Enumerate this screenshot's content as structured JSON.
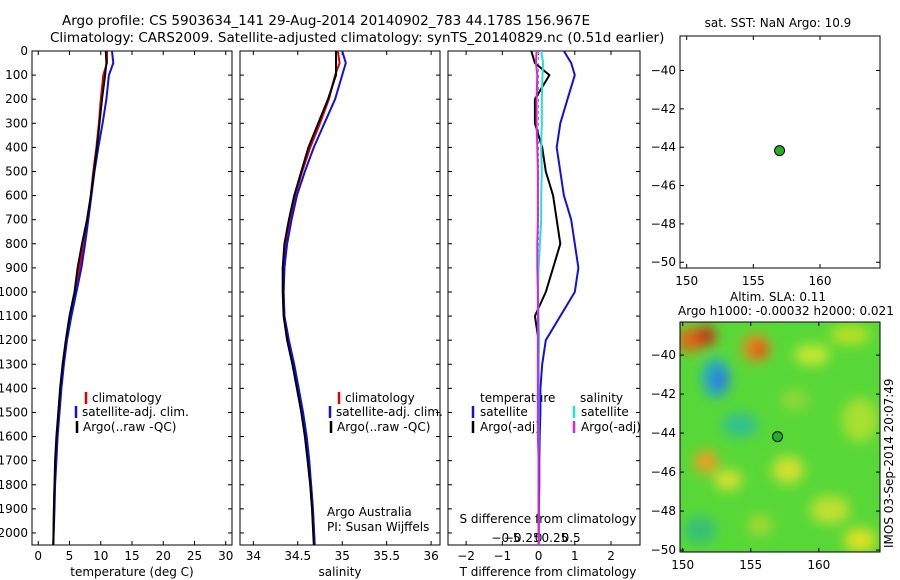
{
  "header": {
    "line1": "Argo profile: CS 5903634_141 29-Aug-2014 20140902_783 44.178S 156.967E",
    "line2": "Climatology: CARS2009. Satellite-adjusted climatology: synTS_20140829.nc (0.51d earlier)"
  },
  "side_text": "IMOS 03-Sep-2014 20:07:49",
  "colors": {
    "climatology": "#e00000",
    "satellite": "#1010e0",
    "argo": "#000000",
    "cyan": "#20e0e0",
    "magenta": "#e020e0",
    "float": "#20b020"
  },
  "chart_data": [
    {
      "id": "temperature",
      "type": "line",
      "xlabel": "temperature (deg C)",
      "xlim": [
        -1,
        31
      ],
      "ylim": [
        2050,
        0
      ],
      "xticks": [
        0,
        5,
        10,
        15,
        20,
        25,
        30
      ],
      "xtick_labels": [
        "0",
        "5",
        "10",
        "15",
        "20",
        "25",
        "30"
      ],
      "yticks": [
        0,
        100,
        200,
        300,
        400,
        500,
        600,
        700,
        800,
        900,
        1000,
        1100,
        1200,
        1300,
        1400,
        1500,
        1600,
        1700,
        1800,
        1900,
        2000
      ],
      "legend": [
        "climatology",
        "satellite-adj. clim.",
        "Argo(..raw -QC)"
      ],
      "series": [
        {
          "name": "climatology",
          "color": "#e00000",
          "x": [
            11.0,
            11.0,
            10.4,
            10.0,
            9.7,
            9.3,
            8.8,
            8.4,
            7.9,
            7.3,
            6.6,
            5.9,
            5.1,
            4.5,
            4.0,
            3.6,
            3.3,
            3.0,
            2.8,
            2.6,
            2.5,
            2.4
          ],
          "y": [
            0,
            50,
            100,
            200,
            300,
            400,
            500,
            600,
            700,
            800,
            900,
            1000,
            1100,
            1200,
            1300,
            1400,
            1500,
            1600,
            1700,
            1800,
            1900,
            2050
          ]
        },
        {
          "name": "satellite-adj. clim.",
          "color": "#1010e0",
          "x": [
            11.8,
            12.0,
            11.3,
            10.9,
            10.3,
            9.6,
            9.0,
            8.5,
            8.0,
            7.5,
            6.9,
            6.1,
            5.3,
            4.6,
            4.1,
            3.7,
            3.4,
            3.1,
            2.9,
            2.7,
            2.6,
            2.4
          ],
          "y": [
            0,
            50,
            100,
            200,
            300,
            400,
            500,
            600,
            700,
            800,
            900,
            1000,
            1100,
            1200,
            1300,
            1400,
            1500,
            1600,
            1700,
            1800,
            1900,
            2050
          ]
        },
        {
          "name": "Argo(..raw -QC)",
          "color": "#000000",
          "x": [
            10.8,
            10.9,
            10.7,
            10.2,
            9.8,
            9.4,
            8.9,
            8.4,
            7.8,
            7.0,
            6.3,
            5.8,
            5.0,
            4.4,
            3.9,
            3.5,
            3.2,
            2.9,
            2.7,
            2.6,
            2.5,
            2.4
          ],
          "y": [
            0,
            50,
            100,
            200,
            300,
            400,
            500,
            600,
            700,
            800,
            900,
            1000,
            1100,
            1200,
            1300,
            1400,
            1500,
            1600,
            1700,
            1800,
            1900,
            2050
          ]
        }
      ]
    },
    {
      "id": "salinity",
      "type": "line",
      "xlabel": "salinity",
      "xlim": [
        33.85,
        36.1
      ],
      "ylim": [
        2050,
        0
      ],
      "xticks": [
        34,
        34.5,
        35,
        35.5,
        36
      ],
      "xtick_labels": [
        "34",
        "34.5",
        "35",
        "35.5",
        "36"
      ],
      "yticks": [
        0,
        100,
        200,
        300,
        400,
        500,
        600,
        700,
        800,
        900,
        1000,
        1100,
        1200,
        1300,
        1400,
        1500,
        1600,
        1700,
        1800,
        1900,
        2000
      ],
      "legend": [
        "climatology",
        "satellite-adj. clim.",
        "Argo(..raw -QC)"
      ],
      "annotation": [
        "Argo Australia",
        "PI: Susan Wijffels"
      ],
      "series": [
        {
          "name": "climatology",
          "color": "#e00000",
          "x": [
            34.95,
            34.97,
            34.92,
            34.85,
            34.75,
            34.64,
            34.55,
            34.47,
            34.41,
            34.37,
            34.35,
            34.34,
            34.35,
            34.39,
            34.45,
            34.5,
            34.55,
            34.59,
            34.62,
            34.65,
            34.67,
            34.69
          ],
          "y": [
            0,
            50,
            100,
            200,
            300,
            400,
            500,
            600,
            700,
            800,
            900,
            1000,
            1100,
            1200,
            1300,
            1400,
            1500,
            1600,
            1700,
            1800,
            1900,
            2050
          ]
        },
        {
          "name": "satellite-adj. clim.",
          "color": "#1010e0",
          "x": [
            35.0,
            35.04,
            35.0,
            34.92,
            34.8,
            34.68,
            34.58,
            34.49,
            34.43,
            34.38,
            34.35,
            34.34,
            34.35,
            34.4,
            34.46,
            34.51,
            34.56,
            34.6,
            34.63,
            34.65,
            34.67,
            34.69
          ],
          "y": [
            0,
            50,
            100,
            200,
            300,
            400,
            500,
            600,
            700,
            800,
            900,
            1000,
            1100,
            1200,
            1300,
            1400,
            1500,
            1600,
            1700,
            1800,
            1900,
            2050
          ]
        },
        {
          "name": "Argo(..raw -QC)",
          "color": "#000000",
          "x": [
            34.93,
            34.93,
            34.93,
            34.84,
            34.73,
            34.62,
            34.54,
            34.46,
            34.4,
            34.35,
            34.33,
            34.33,
            34.34,
            34.38,
            34.44,
            34.49,
            34.54,
            34.58,
            34.61,
            34.64,
            34.66,
            34.68
          ],
          "y": [
            0,
            50,
            100,
            200,
            300,
            400,
            500,
            600,
            700,
            800,
            900,
            1000,
            1100,
            1200,
            1300,
            1400,
            1500,
            1600,
            1700,
            1800,
            1900,
            2050
          ]
        }
      ]
    },
    {
      "id": "difference",
      "type": "line",
      "xlabel": "T difference from climatology",
      "top_label": "S difference from climatology",
      "xlim": [
        -2.5,
        2.8
      ],
      "ylim": [
        2050,
        0
      ],
      "xticks": [
        -2,
        -1,
        0,
        1,
        2
      ],
      "xtick_labels": [
        "−2",
        "−1",
        "0",
        "1",
        "2"
      ],
      "sticks": [
        -0.5,
        -0.25,
        0,
        0.25,
        0.5
      ],
      "stick_labels": [
        "−0.5",
        "−0.25",
        "0",
        "0.25",
        "0.5"
      ],
      "yticks": [
        0,
        100,
        200,
        300,
        400,
        500,
        600,
        700,
        800,
        900,
        1000,
        1100,
        1200,
        1300,
        1400,
        1500,
        1600,
        1700,
        1800,
        1900,
        2000
      ],
      "legend_titles": [
        "temperature",
        "salinity"
      ],
      "legend": [
        "satellite",
        "Argo(-adj)",
        "satellite",
        "Argo(-adj)"
      ],
      "series": [
        {
          "name": "T satellite",
          "color": "#1010e0",
          "x": [
            0.7,
            0.9,
            1.0,
            0.8,
            0.6,
            0.5,
            0.6,
            0.7,
            0.9,
            1.0,
            1.1,
            1.0,
            0.6,
            0.2,
            0.1,
            0.05,
            0.05,
            0.03,
            0.02,
            0.02,
            0.01,
            0.0
          ],
          "y": [
            0,
            50,
            100,
            200,
            300,
            400,
            500,
            600,
            700,
            800,
            900,
            1000,
            1100,
            1200,
            1300,
            1400,
            1500,
            1600,
            1700,
            1800,
            1900,
            2050
          ]
        },
        {
          "name": "T Argo(-adj)",
          "color": "#000000",
          "x": [
            -0.2,
            -0.1,
            0.3,
            -0.1,
            -0.1,
            0.1,
            0.2,
            0.4,
            0.5,
            0.6,
            0.4,
            0.2,
            -0.1,
            0.0,
            0.0,
            0.0,
            0.0,
            0.0,
            0.0,
            0.0,
            0.0,
            0.0
          ],
          "y": [
            0,
            50,
            100,
            200,
            300,
            400,
            500,
            600,
            700,
            800,
            900,
            1000,
            1100,
            1200,
            1300,
            1400,
            1500,
            1600,
            1700,
            1800,
            1900,
            2050
          ]
        },
        {
          "name": "S satellite",
          "color": "#20e0e0",
          "x": [
            0.04,
            0.07,
            0.06,
            0.05,
            0.05,
            0.04,
            0.05,
            0.04,
            0.04,
            0.02,
            0.0,
            -0.01,
            0.0,
            0.01,
            0.0,
            0.0,
            0.0,
            0.0,
            0.0,
            0.0,
            0.0,
            0.0
          ],
          "y": [
            0,
            50,
            100,
            200,
            300,
            400,
            500,
            600,
            700,
            800,
            900,
            1000,
            1100,
            1200,
            1300,
            1400,
            1500,
            1600,
            1700,
            1800,
            1900,
            2050
          ]
        },
        {
          "name": "S Argo(-adj)",
          "color": "#e020e0",
          "x": [
            -0.03,
            -0.04,
            -0.02,
            -0.03,
            -0.03,
            -0.02,
            -0.01,
            -0.01,
            -0.01,
            -0.02,
            -0.02,
            -0.01,
            -0.01,
            -0.01,
            -0.01,
            -0.01,
            -0.01,
            -0.01,
            0.0,
            0.0,
            0.0,
            0.0
          ],
          "y": [
            0,
            50,
            100,
            200,
            300,
            400,
            500,
            600,
            700,
            800,
            900,
            1000,
            1100,
            1200,
            1300,
            1400,
            1500,
            1600,
            1700,
            1800,
            1900,
            2050
          ]
        }
      ]
    },
    {
      "id": "sst_map",
      "type": "scatter",
      "title": "sat. SST: NaN Argo: 10.9",
      "xlim": [
        149.5,
        164.5
      ],
      "ylim": [
        -50.3,
        -38.2
      ],
      "xticks": [
        150,
        155,
        160
      ],
      "xtick_labels": [
        "150",
        "155",
        "160"
      ],
      "yticks": [
        -40,
        -42,
        -44,
        -46,
        -48,
        -50
      ],
      "ytick_labels": [
        "−40",
        "−42",
        "−44",
        "−46",
        "−48",
        "−50"
      ],
      "point": {
        "lon": 156.967,
        "lat": -44.178
      }
    },
    {
      "id": "sla_map",
      "type": "heatmap",
      "title_lines": [
        "Altim. SLA: 0.11",
        "Argo h1000: -0.00032 h2000: 0.021"
      ],
      "xlim": [
        149.8,
        164.5
      ],
      "ylim": [
        -50.1,
        -38.3
      ],
      "xticks": [
        150,
        155,
        160
      ],
      "xtick_labels": [
        "150",
        "155",
        "160"
      ],
      "yticks": [
        -40,
        -42,
        -44,
        -46,
        -48,
        -50
      ],
      "ytick_labels": [
        "−40",
        "−42",
        "−44",
        "−46",
        "−48",
        "−50"
      ],
      "point": {
        "lon": 156.967,
        "lat": -44.178
      }
    }
  ]
}
